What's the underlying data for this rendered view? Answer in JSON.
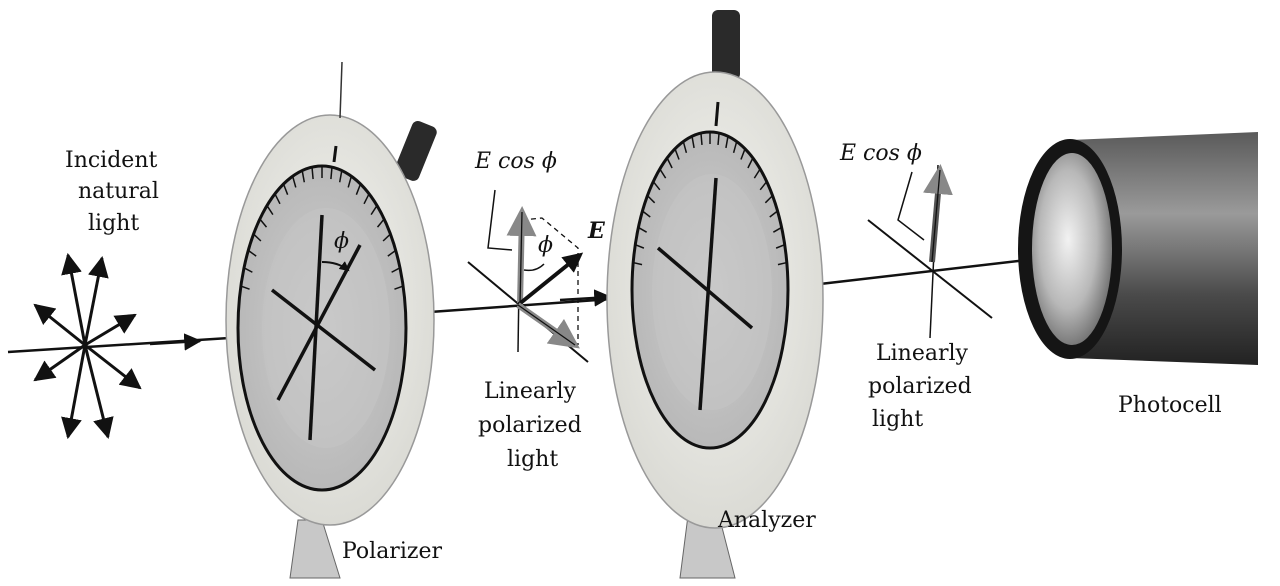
{
  "figure": {
    "labels": {
      "incident": [
        "Incident",
        "natural",
        "light"
      ],
      "polarizer": "Polarizer",
      "analyzer": "Analyzer",
      "linear1": [
        "Linearly",
        "polarized",
        "light"
      ],
      "linear2": [
        "Linearly",
        "polarized",
        "light"
      ],
      "photocell": "Photocell",
      "e_cos_phi_1": "E cos ϕ",
      "e_cos_phi_2": "E cos ϕ",
      "phi_polarizer": "ϕ",
      "phi_vector": "ϕ",
      "e_vector": "E"
    }
  }
}
